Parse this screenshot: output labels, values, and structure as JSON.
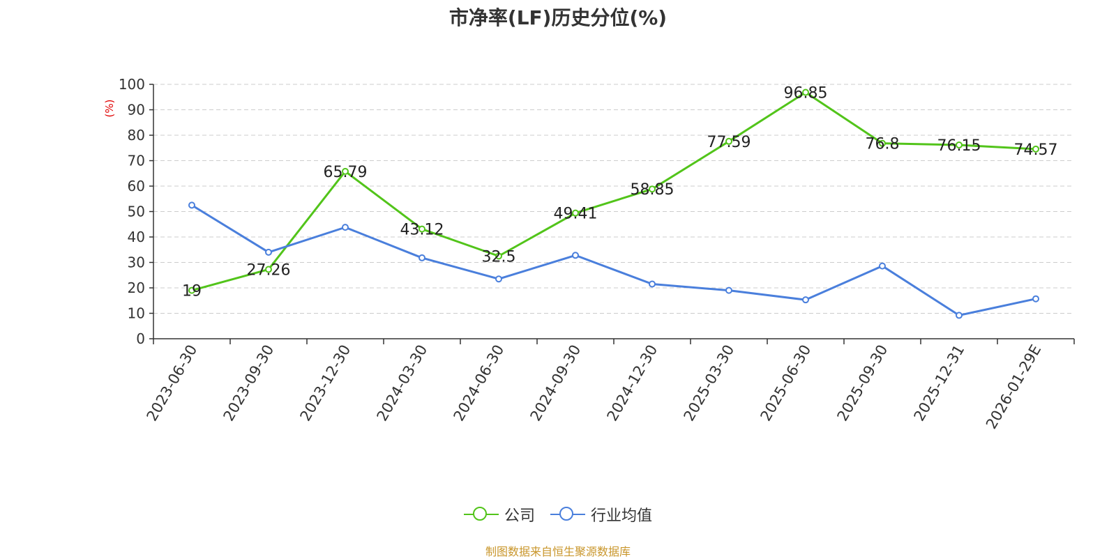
{
  "title": "市净率(LF)历史分位(%)",
  "source": "制图数据来自恒生聚源数据库",
  "chart_data": {
    "type": "line",
    "title": "市净率(LF)历史分位(%)",
    "ylabel": "(%)",
    "xlabel": "",
    "ylim": [
      0,
      100
    ],
    "yticks": [
      0,
      10,
      20,
      30,
      40,
      50,
      60,
      70,
      80,
      90,
      100
    ],
    "grid": true,
    "legend_position": "bottom",
    "categories": [
      "2023-06-30",
      "2023-09-30",
      "2023-12-30",
      "2024-03-30",
      "2024-06-30",
      "2024-09-30",
      "2024-12-30",
      "2025-03-30",
      "2025-06-30",
      "2025-09-30",
      "2025-12-31",
      "2026-01-29E"
    ],
    "series": [
      {
        "name": "公司",
        "color": "#52c41a",
        "show_labels": true,
        "values": [
          19,
          27.26,
          65.79,
          43.12,
          32.5,
          49.41,
          58.85,
          77.59,
          96.85,
          76.8,
          76.15,
          74.57
        ]
      },
      {
        "name": "行业均值",
        "color": "#4a7fdc",
        "show_labels": false,
        "values": [
          52.5,
          34,
          43.8,
          31.8,
          23.5,
          32.8,
          21.5,
          19,
          15.3,
          28.6,
          9.2,
          15.7
        ]
      }
    ]
  }
}
